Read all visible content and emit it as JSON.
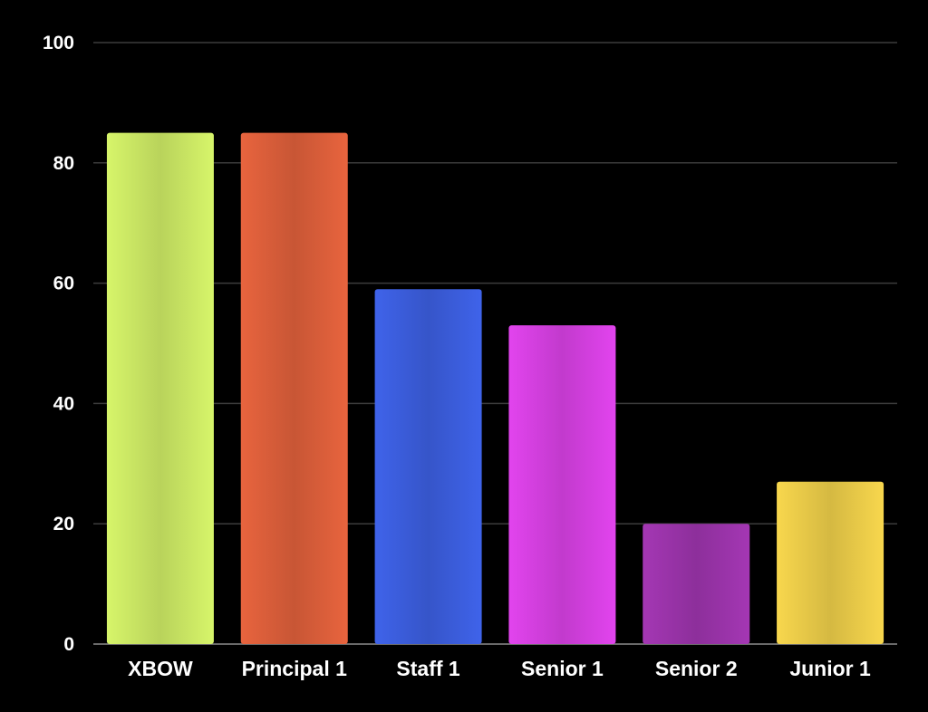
{
  "chart_data": {
    "type": "bar",
    "categories": [
      "XBOW",
      "Principal 1",
      "Staff 1",
      "Senior 1",
      "Senior 2",
      "Junior 1"
    ],
    "series": [
      {
        "values": [
          85,
          85,
          59,
          53,
          20,
          27
        ]
      }
    ],
    "colors": [
      "#d7f56a",
      "#e8643e",
      "#3f63ea",
      "#e244ee",
      "#a437b4",
      "#f8d74d"
    ],
    "ylim": [
      0,
      100
    ],
    "yticks": [
      0,
      20,
      40,
      60,
      80,
      100
    ],
    "grid": true,
    "legend": "none",
    "background": "#000000"
  }
}
